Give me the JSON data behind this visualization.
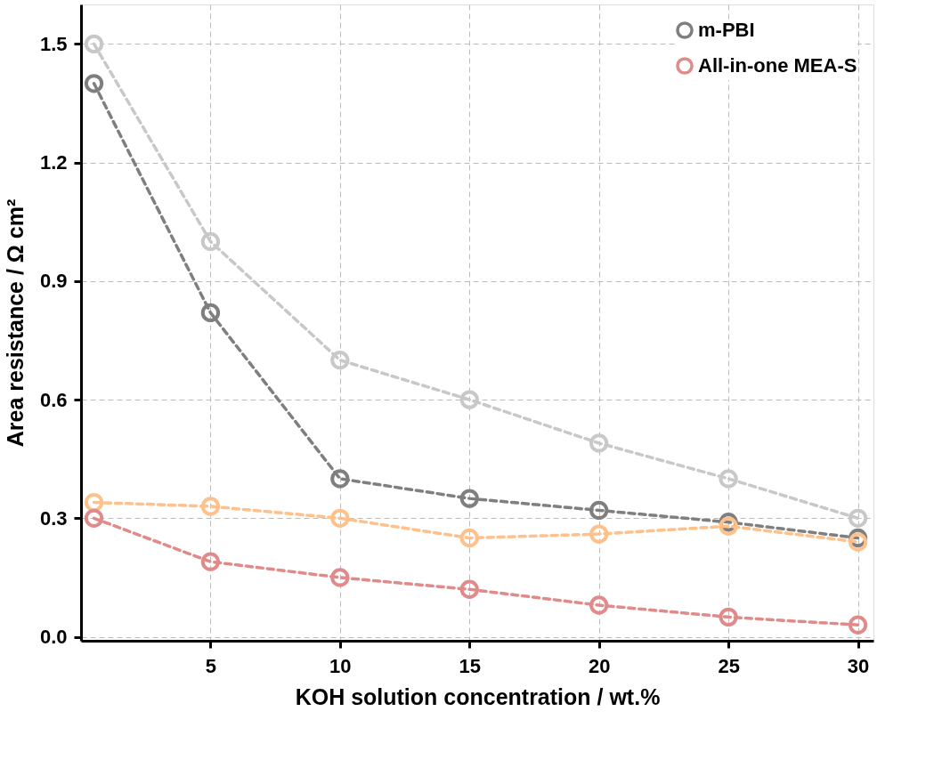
{
  "chart_data": {
    "type": "line",
    "xlabel": "KOH solution concentration / wt.%",
    "ylabel": "Area resistance / Ω cm²",
    "x": [
      0.5,
      5,
      10,
      15,
      20,
      25,
      30
    ],
    "series": [
      {
        "color": "#c8c8c8",
        "values": [
          1.5,
          1.0,
          0.7,
          0.6,
          0.49,
          0.4,
          0.3
        ]
      },
      {
        "name": "m-PBI",
        "color": "#7f7f7f",
        "values": [
          1.4,
          0.82,
          0.4,
          0.35,
          0.32,
          0.29,
          0.25
        ]
      },
      {
        "color": "#ffc08a",
        "values": [
          0.34,
          0.33,
          0.3,
          0.25,
          0.26,
          0.28,
          0.24
        ]
      },
      {
        "name": "All-in-one MEA-S",
        "color": "#e08a8a",
        "values": [
          0.3,
          0.19,
          0.15,
          0.12,
          0.08,
          0.05,
          0.03
        ]
      }
    ],
    "xlim": [
      0,
      30.6
    ],
    "xticks": [
      5,
      10,
      15,
      20,
      25,
      30
    ],
    "ylim": [
      -0.01,
      1.6
    ],
    "yticks": [
      {
        "value": 0,
        "label": "0.0"
      },
      {
        "value": 0.3,
        "label": "0.3"
      },
      {
        "value": 0.6,
        "label": "0.6"
      },
      {
        "value": 0.9,
        "label": "0.9"
      },
      {
        "value": 1.2,
        "label": "1.2"
      },
      {
        "value": 1.5,
        "label": "1.5"
      }
    ],
    "grid": true,
    "legend": "top right",
    "marker": "circle",
    "line_style": "dashed"
  }
}
